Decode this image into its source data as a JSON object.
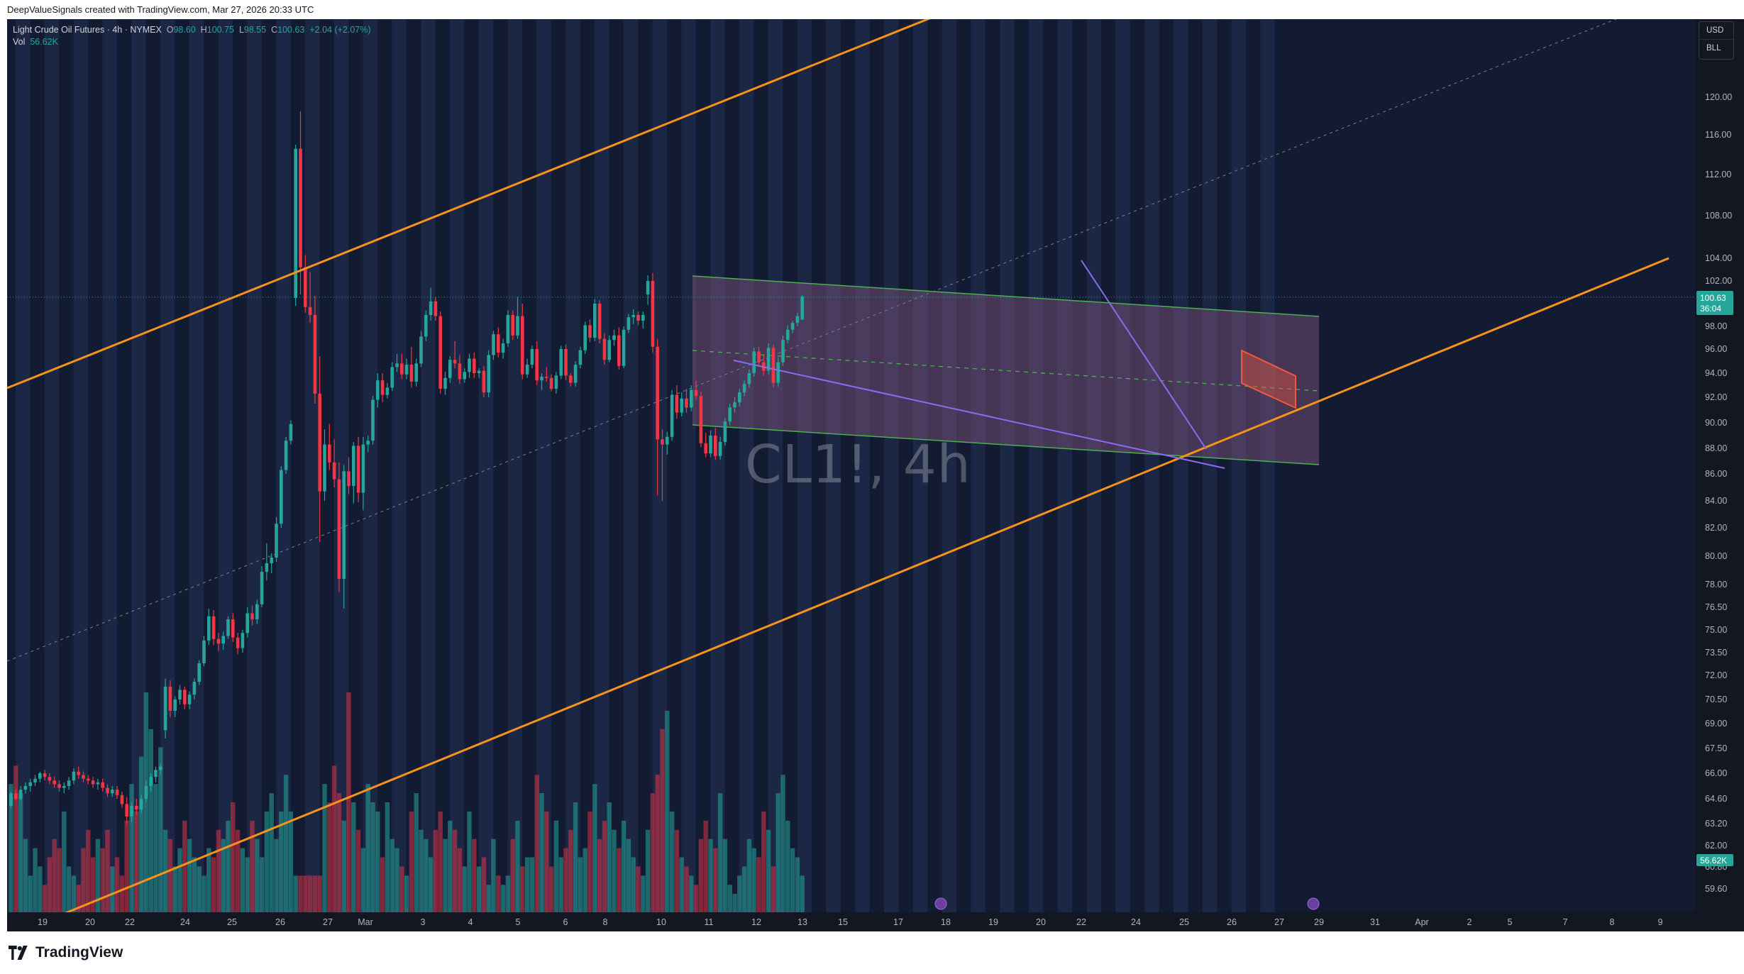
{
  "header": {
    "credit": "DeepValueSignals created with TradingView.com, Mar 27, 2026 20:33 UTC"
  },
  "legend": {
    "title": "Light Crude Oil Futures · 4h · NYMEX",
    "o_label": "O",
    "o_value": "98.60",
    "h_label": "H",
    "h_value": "100.75",
    "l_label": "L",
    "l_value": "98.55",
    "c_label": "C",
    "c_value": "100.63",
    "change": "+2.04 (+2.07%)",
    "vol_label": "Vol",
    "vol_value": "56.62K"
  },
  "watermark": "CL1!, 4h",
  "currency": {
    "unit": "USD",
    "sub": "BLL"
  },
  "brand": {
    "name": "TradingView",
    "icon": "tradingview-logo-icon"
  },
  "colors": {
    "up": "#26a69a",
    "down": "#f23645",
    "channel": "#f7931a",
    "box_fill": "#8c5a85",
    "box_border": "#4caf50",
    "wedge": "#8b6cf0",
    "flag": "#f05a3c"
  },
  "chart_data": {
    "type": "candlestick",
    "symbol": "CL1!",
    "interval": "4h",
    "last_price": "100.63",
    "countdown": "36:04",
    "volume_last": "56.62K",
    "y_ticks": [
      "120.00",
      "116.00",
      "112.00",
      "108.00",
      "104.00",
      "102.00",
      "98.00",
      "96.00",
      "94.00",
      "92.00",
      "90.00",
      "88.00",
      "86.00",
      "84.00",
      "82.00",
      "80.00",
      "78.00",
      "76.50",
      "75.00",
      "73.50",
      "72.00",
      "70.50",
      "69.00",
      "67.50",
      "66.00",
      "64.60",
      "63.20",
      "62.00",
      "60.80",
      "59.60"
    ],
    "x_labels": [
      "19",
      "20",
      "22",
      "24",
      "25",
      "26",
      "27",
      "Mar",
      "3",
      "4",
      "5",
      "6",
      "8",
      "10",
      "11",
      "12",
      "13",
      "15",
      "17",
      "18",
      "19",
      "20",
      "22",
      "24",
      "25",
      "26",
      "27",
      "29",
      "31",
      "Apr",
      "2",
      "5",
      "7",
      "8",
      "9"
    ],
    "candles": [
      [
        64.2,
        65.0,
        64.1,
        64.9
      ],
      [
        64.9,
        65.1,
        64.5,
        64.6
      ],
      [
        64.6,
        65.3,
        64.5,
        65.1
      ],
      [
        65.1,
        65.5,
        64.9,
        65.3
      ],
      [
        65.3,
        65.7,
        65.0,
        65.5
      ],
      [
        65.5,
        65.9,
        65.3,
        65.7
      ],
      [
        65.7,
        66.1,
        65.5,
        66.0
      ],
      [
        66.0,
        66.2,
        65.6,
        65.8
      ],
      [
        65.8,
        66.0,
        65.4,
        65.6
      ],
      [
        65.6,
        65.8,
        65.2,
        65.4
      ],
      [
        65.4,
        65.6,
        65.0,
        65.2
      ],
      [
        65.2,
        65.5,
        64.9,
        65.3
      ],
      [
        65.3,
        65.8,
        65.1,
        65.6
      ],
      [
        65.6,
        66.3,
        65.4,
        66.1
      ],
      [
        66.1,
        66.4,
        65.7,
        65.9
      ],
      [
        65.9,
        66.1,
        65.5,
        65.7
      ],
      [
        65.7,
        65.9,
        65.4,
        65.6
      ],
      [
        65.6,
        65.8,
        65.2,
        65.4
      ],
      [
        65.4,
        65.7,
        65.1,
        65.5
      ],
      [
        65.5,
        65.7,
        65.0,
        65.2
      ],
      [
        65.2,
        65.4,
        64.7,
        64.9
      ],
      [
        64.9,
        65.3,
        64.7,
        65.1
      ],
      [
        65.1,
        65.3,
        64.6,
        64.8
      ],
      [
        64.8,
        65.0,
        64.1,
        64.3
      ],
      [
        64.3,
        64.7,
        63.2,
        63.6
      ],
      [
        63.6,
        64.4,
        63.3,
        64.2
      ],
      [
        64.2,
        64.6,
        63.7,
        64.0
      ],
      [
        64.0,
        64.8,
        63.8,
        64.6
      ],
      [
        64.6,
        65.6,
        64.4,
        65.3
      ],
      [
        65.3,
        66.0,
        65.0,
        65.8
      ],
      [
        65.8,
        66.4,
        65.5,
        66.2
      ],
      [
        66.2,
        66.6,
        65.9,
        66.4
      ],
      [
        68.6,
        71.8,
        68.1,
        71.3
      ],
      [
        71.3,
        71.7,
        69.4,
        69.8
      ],
      [
        69.8,
        70.7,
        69.4,
        70.5
      ],
      [
        70.5,
        71.4,
        70.2,
        71.1
      ],
      [
        71.1,
        71.3,
        69.9,
        70.2
      ],
      [
        70.2,
        71.0,
        69.9,
        70.8
      ],
      [
        70.8,
        71.8,
        70.5,
        71.6
      ],
      [
        71.6,
        73.0,
        71.4,
        72.8
      ],
      [
        72.8,
        74.6,
        72.6,
        74.3
      ],
      [
        74.3,
        76.4,
        74.0,
        75.9
      ],
      [
        75.9,
        76.3,
        74.0,
        74.4
      ],
      [
        74.4,
        74.8,
        73.6,
        74.1
      ],
      [
        74.1,
        74.9,
        73.7,
        74.6
      ],
      [
        74.6,
        75.9,
        74.4,
        75.7
      ],
      [
        75.7,
        76.1,
        74.2,
        74.5
      ],
      [
        74.5,
        74.8,
        73.4,
        73.8
      ],
      [
        73.8,
        75.0,
        73.5,
        74.8
      ],
      [
        74.8,
        76.5,
        74.5,
        76.1
      ],
      [
        76.1,
        76.6,
        75.3,
        75.7
      ],
      [
        75.7,
        77.0,
        75.4,
        76.7
      ],
      [
        76.7,
        79.3,
        76.5,
        78.9
      ],
      [
        78.9,
        80.9,
        78.3,
        79.5
      ],
      [
        79.5,
        80.2,
        78.8,
        79.9
      ],
      [
        79.9,
        82.8,
        79.6,
        82.3
      ],
      [
        82.3,
        86.6,
        82.0,
        86.3
      ],
      [
        86.3,
        88.9,
        86.0,
        88.6
      ],
      [
        88.6,
        90.2,
        88.3,
        89.9
      ],
      [
        100.5,
        115.0,
        99.8,
        114.6
      ],
      [
        114.6,
        118.5,
        100.8,
        103.2
      ],
      [
        103.2,
        104.3,
        99.2,
        99.7
      ],
      [
        99.7,
        102.8,
        98.3,
        99.0
      ],
      [
        99.0,
        100.7,
        91.5,
        92.3
      ],
      [
        92.3,
        95.4,
        81.0,
        84.7
      ],
      [
        84.7,
        89.5,
        84.0,
        88.3
      ],
      [
        88.3,
        89.9,
        86.3,
        86.9
      ],
      [
        86.9,
        88.7,
        85.0,
        85.6
      ],
      [
        85.6,
        86.9,
        77.5,
        78.4
      ],
      [
        78.4,
        86.7,
        76.4,
        86.2
      ],
      [
        86.2,
        87.3,
        84.5,
        85.1
      ],
      [
        85.1,
        88.5,
        83.8,
        88.2
      ],
      [
        88.2,
        88.9,
        83.9,
        84.6
      ],
      [
        84.6,
        88.9,
        83.3,
        88.3
      ],
      [
        88.3,
        89.0,
        87.7,
        88.6
      ],
      [
        88.6,
        92.1,
        88.3,
        91.8
      ],
      [
        91.8,
        94.0,
        91.2,
        93.4
      ],
      [
        93.4,
        94.0,
        91.6,
        92.2
      ],
      [
        92.2,
        93.2,
        91.9,
        92.8
      ],
      [
        92.8,
        94.9,
        92.5,
        94.5
      ],
      [
        94.5,
        95.6,
        94.1,
        94.8
      ],
      [
        94.8,
        95.6,
        93.5,
        93.9
      ],
      [
        93.9,
        95.2,
        93.5,
        94.7
      ],
      [
        94.7,
        96.2,
        92.8,
        93.3
      ],
      [
        93.3,
        95.2,
        92.9,
        94.8
      ],
      [
        94.8,
        97.6,
        94.5,
        97.1
      ],
      [
        97.1,
        99.4,
        96.7,
        99.0
      ],
      [
        99.0,
        101.4,
        98.5,
        100.2
      ],
      [
        100.2,
        100.6,
        98.5,
        98.9
      ],
      [
        98.9,
        99.3,
        92.3,
        92.7
      ],
      [
        92.7,
        94.1,
        92.2,
        93.6
      ],
      [
        93.6,
        95.4,
        93.2,
        95.1
      ],
      [
        95.1,
        96.7,
        94.4,
        94.8
      ],
      [
        94.8,
        95.5,
        93.1,
        93.5
      ],
      [
        93.5,
        94.4,
        93.2,
        94.1
      ],
      [
        94.1,
        95.6,
        93.6,
        95.2
      ],
      [
        95.2,
        95.7,
        93.6,
        94.0
      ],
      [
        94.0,
        94.4,
        93.6,
        94.2
      ],
      [
        94.2,
        94.6,
        92.0,
        92.4
      ],
      [
        92.4,
        95.9,
        92.0,
        95.5
      ],
      [
        95.5,
        97.6,
        95.1,
        97.3
      ],
      [
        97.3,
        97.9,
        95.3,
        95.7
      ],
      [
        95.7,
        96.9,
        95.2,
        96.5
      ],
      [
        96.5,
        99.4,
        96.2,
        99.0
      ],
      [
        99.0,
        99.4,
        96.8,
        97.2
      ],
      [
        97.2,
        100.6,
        96.9,
        98.9
      ],
      [
        98.9,
        100.0,
        93.5,
        93.9
      ],
      [
        93.9,
        95.2,
        93.6,
        94.7
      ],
      [
        94.7,
        96.3,
        94.4,
        96.0
      ],
      [
        96.0,
        96.7,
        93.0,
        93.4
      ],
      [
        93.4,
        94.0,
        92.6,
        93.7
      ],
      [
        93.7,
        94.5,
        93.3,
        93.6
      ],
      [
        93.6,
        93.9,
        92.5,
        92.7
      ],
      [
        92.7,
        94.1,
        92.3,
        93.8
      ],
      [
        93.8,
        96.3,
        93.5,
        96.0
      ],
      [
        96.0,
        96.4,
        93.4,
        93.8
      ],
      [
        93.8,
        94.0,
        92.9,
        93.2
      ],
      [
        93.2,
        95.0,
        92.9,
        94.7
      ],
      [
        94.7,
        96.2,
        94.4,
        95.9
      ],
      [
        95.9,
        98.4,
        95.6,
        98.1
      ],
      [
        98.1,
        98.6,
        96.6,
        97.0
      ],
      [
        97.0,
        100.4,
        96.7,
        100.0
      ],
      [
        100.0,
        100.3,
        96.5,
        96.9
      ],
      [
        96.9,
        97.4,
        94.7,
        95.1
      ],
      [
        95.1,
        97.2,
        94.9,
        96.8
      ],
      [
        96.8,
        97.7,
        96.3,
        97.2
      ],
      [
        97.2,
        97.9,
        94.3,
        94.6
      ],
      [
        94.6,
        98.0,
        94.4,
        97.7
      ],
      [
        97.7,
        99.1,
        97.4,
        98.8
      ],
      [
        98.8,
        99.5,
        98.2,
        99.0
      ],
      [
        99.0,
        99.3,
        98.1,
        98.5
      ],
      [
        98.5,
        99.3,
        97.8,
        99.0
      ],
      [
        100.8,
        102.5,
        99.9,
        102.0
      ],
      [
        102.0,
        102.7,
        95.7,
        96.2
      ],
      [
        96.2,
        96.9,
        84.4,
        88.7
      ],
      [
        88.7,
        89.5,
        84.0,
        88.3
      ],
      [
        88.3,
        89.3,
        87.5,
        88.9
      ],
      [
        88.9,
        92.6,
        88.6,
        92.2
      ],
      [
        92.2,
        93.0,
        90.3,
        90.8
      ],
      [
        90.8,
        92.4,
        90.5,
        91.9
      ],
      [
        91.9,
        92.7,
        90.8,
        91.2
      ],
      [
        91.2,
        93.0,
        90.9,
        92.6
      ],
      [
        92.6,
        93.4,
        91.8,
        92.1
      ],
      [
        92.1,
        92.5,
        88.1,
        88.4
      ],
      [
        88.4,
        89.2,
        87.3,
        87.6
      ],
      [
        87.6,
        89.4,
        87.3,
        89.0
      ],
      [
        89.0,
        89.6,
        87.1,
        87.4
      ],
      [
        87.4,
        88.9,
        87.1,
        88.5
      ],
      [
        88.5,
        90.4,
        88.2,
        90.1
      ],
      [
        90.1,
        91.5,
        89.8,
        91.2
      ],
      [
        91.2,
        92.0,
        90.8,
        91.6
      ],
      [
        91.6,
        92.7,
        91.3,
        92.4
      ],
      [
        92.4,
        93.4,
        92.1,
        93.1
      ],
      [
        93.1,
        94.3,
        92.8,
        94.0
      ],
      [
        94.0,
        96.1,
        93.7,
        95.8
      ],
      [
        95.8,
        96.2,
        94.6,
        94.9
      ],
      [
        94.9,
        95.5,
        93.8,
        94.2
      ],
      [
        94.2,
        96.5,
        93.9,
        96.1
      ],
      [
        96.1,
        96.4,
        92.8,
        93.2
      ],
      [
        93.2,
        95.3,
        92.9,
        94.9
      ],
      [
        94.9,
        97.2,
        94.6,
        96.8
      ],
      [
        96.8,
        98.1,
        96.5,
        97.7
      ],
      [
        97.7,
        98.5,
        97.4,
        98.3
      ],
      [
        98.3,
        99.2,
        98.0,
        98.9
      ],
      [
        98.6,
        100.75,
        98.55,
        100.63
      ]
    ],
    "volumes": [
      14,
      16,
      13,
      8,
      4,
      7,
      5,
      3,
      6,
      8,
      7,
      11,
      5,
      4,
      3,
      7,
      9,
      6,
      8,
      7,
      9,
      5,
      6,
      4,
      10,
      14,
      11,
      17,
      24,
      20,
      14,
      18,
      9,
      8,
      5,
      7,
      10,
      8,
      6,
      5,
      4,
      7,
      6,
      9,
      8,
      10,
      12,
      9,
      7,
      6,
      10,
      8,
      6,
      11,
      13,
      8,
      11,
      15,
      11,
      4,
      4,
      4,
      4,
      4,
      4,
      14,
      12,
      16,
      13,
      10,
      24,
      12,
      9,
      7,
      14,
      12,
      11,
      6,
      12,
      8,
      7,
      5,
      4,
      11,
      13,
      9,
      8,
      6,
      9,
      11,
      8,
      10,
      9,
      7,
      5,
      11,
      8,
      5,
      6,
      3,
      8,
      4,
      3,
      4,
      8,
      10,
      5,
      6,
      6,
      15,
      13,
      11,
      5,
      10,
      6,
      7,
      9,
      12,
      6,
      7,
      11,
      14,
      8,
      10,
      12,
      9,
      7,
      10,
      8,
      6,
      5,
      4,
      9,
      13,
      15,
      20,
      22,
      11,
      9,
      6,
      5,
      4,
      3,
      8,
      10,
      8,
      7,
      13,
      8,
      3,
      2,
      4,
      5,
      8,
      7,
      6,
      11,
      9,
      5,
      13,
      15,
      10,
      7,
      6,
      4,
      9,
      12,
      9
    ],
    "overlays": {
      "ascending_channel": "parallel channel",
      "descending_box": "flag rectangle",
      "wedge": "falling wedge",
      "bull_flag": "flag"
    }
  }
}
